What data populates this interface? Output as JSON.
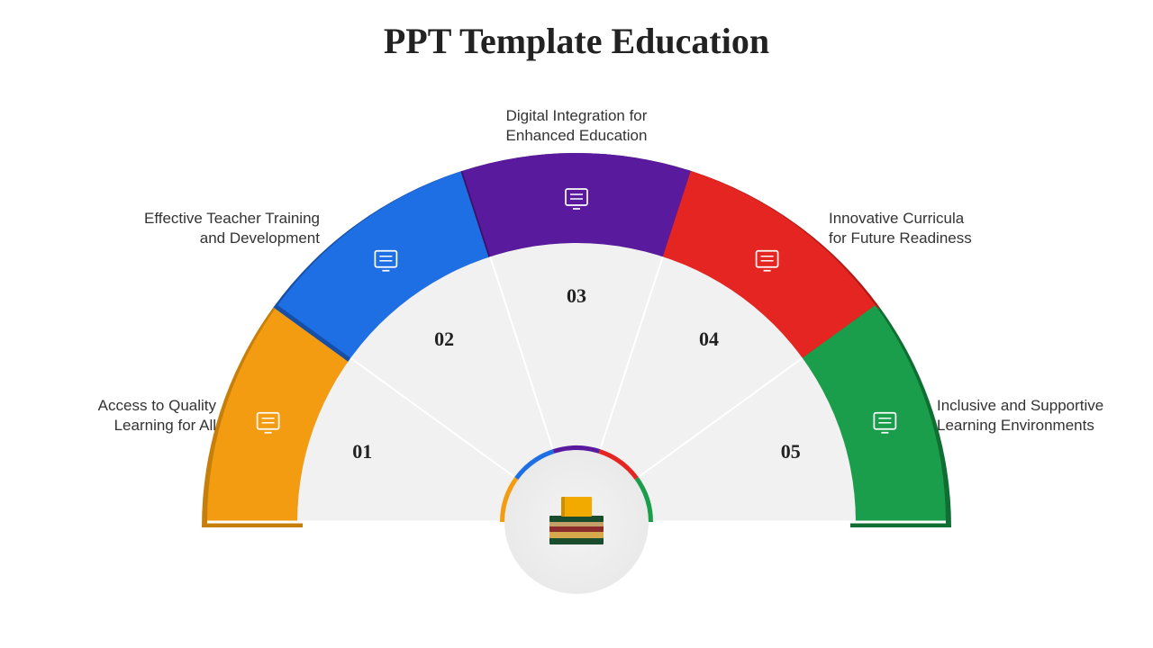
{
  "title": "PPT Template Education",
  "diagram": {
    "type": "semicircle-segments",
    "outer_radius": 410,
    "ring_width": 100,
    "inner_fill": "#f1f1f2",
    "bg": "#ffffff",
    "label_font_size": 17,
    "number_font_size": 22,
    "title_font_size": 40,
    "segments": [
      {
        "id": "01",
        "number": "01",
        "color": "#f39c12",
        "dark": "#c77f0c",
        "label": "Access to Quality\nLearning for All",
        "icon": "book-icon"
      },
      {
        "id": "02",
        "number": "02",
        "color": "#1f6fe4",
        "dark": "#184fa6",
        "label": "Effective Teacher Training\nand Development",
        "icon": "presentation-icon"
      },
      {
        "id": "03",
        "number": "03",
        "color": "#5a1a9e",
        "dark": "#3c1169",
        "label": "Digital Integration for\nEnhanced Education",
        "icon": "monitor-icon"
      },
      {
        "id": "04",
        "number": "04",
        "color": "#e52521",
        "dark": "#b01815",
        "label": "Innovative Curricula\nfor Future Readiness",
        "icon": "student-icon"
      },
      {
        "id": "05",
        "number": "05",
        "color": "#1a9e4b",
        "dark": "#0f6e31",
        "label": "Inclusive and Supportive\nLearning Environments",
        "icon": "group-icon"
      }
    ],
    "center_icon": "books-stack",
    "center_circle_bg": "#efefef",
    "book_colors": [
      "#1a4d2e",
      "#d4a84b",
      "#8b2c2c",
      "#c4a068",
      "#1a4d2e"
    ],
    "top_book": "#f2a900"
  },
  "labels": {
    "l1": "Access to Quality\nLearning for All",
    "l2": "Effective Teacher Training\nand Development",
    "l3": "Digital Integration for\nEnhanced Education",
    "l4": "Innovative Curricula\nfor Future Readiness",
    "l5": "Inclusive and Supportive\nLearning Environments"
  }
}
